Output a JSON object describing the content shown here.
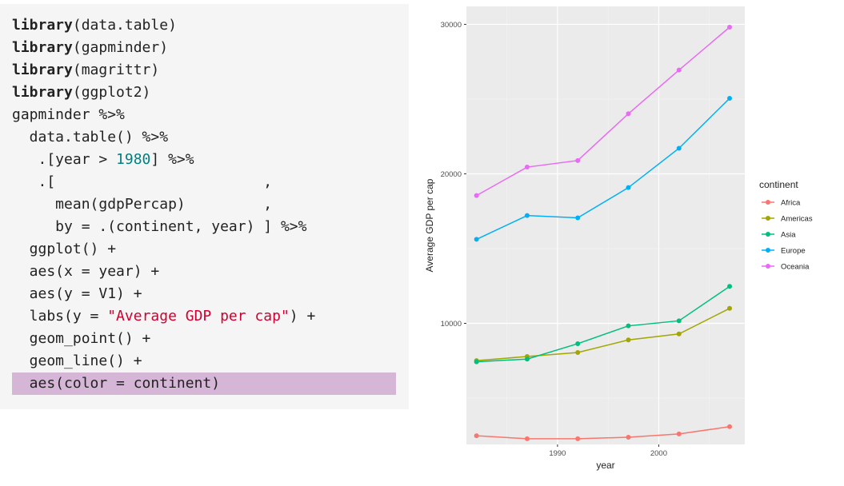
{
  "code": {
    "lines": [
      [
        {
          "t": "library",
          "c": "kw"
        },
        {
          "t": "(data.table)"
        }
      ],
      [
        {
          "t": "library",
          "c": "kw"
        },
        {
          "t": "(gapminder)"
        }
      ],
      [
        {
          "t": "library",
          "c": "kw"
        },
        {
          "t": "(magrittr)"
        }
      ],
      [
        {
          "t": "library",
          "c": "kw"
        },
        {
          "t": "(ggplot2)"
        }
      ],
      [
        {
          "t": "gapminder %>%"
        }
      ],
      [
        {
          "t": "  data.table() %>%"
        }
      ],
      [
        {
          "t": "   .[year > "
        },
        {
          "t": "1980",
          "c": "num"
        },
        {
          "t": "] %>%"
        }
      ],
      [
        {
          "t": "   .[                        ,"
        }
      ],
      [
        {
          "t": "     mean(gdpPercap)         ,"
        }
      ],
      [
        {
          "t": "     by = .(continent, year) ] %>%"
        }
      ],
      [
        {
          "t": "  ggplot() +"
        }
      ],
      [
        {
          "t": "  aes(x = year) +"
        }
      ],
      [
        {
          "t": "  aes(y = V1) +"
        }
      ],
      [
        {
          "t": "  labs(y = "
        },
        {
          "t": "\"Average GDP per cap\"",
          "c": "str"
        },
        {
          "t": ") +"
        }
      ],
      [
        {
          "t": "  geom_point() +"
        }
      ],
      [
        {
          "t": "  geom_line() +"
        }
      ],
      [
        {
          "t": "  aes(color = continent)"
        }
      ]
    ],
    "highlight_line": 16
  },
  "chart_data": {
    "type": "line",
    "xlabel": "year",
    "ylabel": "Average GDP per cap",
    "x": [
      1982,
      1987,
      1992,
      1997,
      2002,
      2007
    ],
    "xlim": [
      1981,
      2008.5
    ],
    "ylim": [
      1900,
      31200
    ],
    "x_ticks": [
      1990,
      2000
    ],
    "y_ticks": [
      10000,
      20000,
      30000
    ],
    "grid": true,
    "legend_title": "continent",
    "legend_position": "right",
    "series": [
      {
        "name": "Africa",
        "color": "#F8766D",
        "values": [
          2480,
          2280,
          2280,
          2380,
          2600,
          3090
        ]
      },
      {
        "name": "Americas",
        "color": "#A3A500",
        "values": [
          7510,
          7780,
          8050,
          8890,
          9290,
          11000
        ]
      },
      {
        "name": "Asia",
        "color": "#00BF7D",
        "values": [
          7430,
          7610,
          8640,
          9830,
          10170,
          12470
        ]
      },
      {
        "name": "Europe",
        "color": "#00B0F6",
        "values": [
          15620,
          17210,
          17060,
          19080,
          21710,
          25050
        ]
      },
      {
        "name": "Oceania",
        "color": "#E76BF3",
        "values": [
          18550,
          20450,
          20890,
          24020,
          26940,
          29810
        ]
      }
    ]
  }
}
